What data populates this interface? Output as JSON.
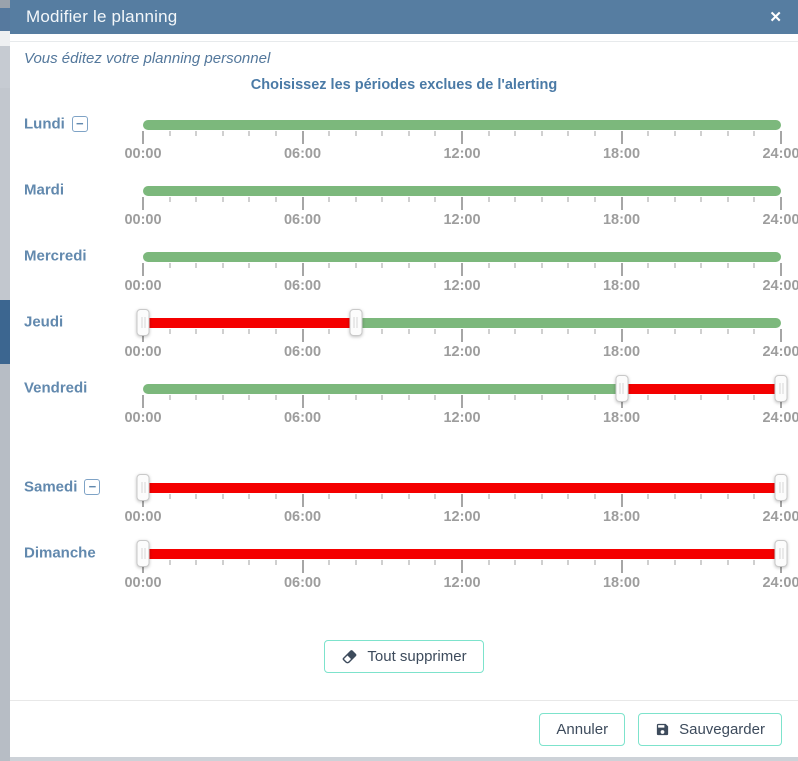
{
  "header": {
    "title": "Modifier le planning",
    "close_label": "✕"
  },
  "subtitle": "Vous éditez votre planning personnel",
  "section_title": "Choisissez les périodes exclues de l'alerting",
  "axis": {
    "tick_labels": [
      "00:00",
      "06:00",
      "12:00",
      "18:00",
      "24:00"
    ],
    "hours_total": 24,
    "minor_tick_every_hours": 1,
    "major_tick_every_hours": 6
  },
  "days": [
    {
      "label": "Lundi",
      "removable": true,
      "extra_gap_before": false,
      "segments": [
        {
          "start": 0,
          "end": 24,
          "color": "green"
        }
      ],
      "handles": []
    },
    {
      "label": "Mardi",
      "removable": false,
      "extra_gap_before": false,
      "segments": [
        {
          "start": 0,
          "end": 24,
          "color": "green"
        }
      ],
      "handles": []
    },
    {
      "label": "Mercredi",
      "removable": false,
      "extra_gap_before": false,
      "segments": [
        {
          "start": 0,
          "end": 24,
          "color": "green"
        }
      ],
      "handles": []
    },
    {
      "label": "Jeudi",
      "removable": false,
      "extra_gap_before": false,
      "segments": [
        {
          "start": 0,
          "end": 8,
          "color": "red"
        },
        {
          "start": 8,
          "end": 24,
          "color": "green"
        }
      ],
      "handles": [
        0,
        8
      ]
    },
    {
      "label": "Vendredi",
      "removable": false,
      "extra_gap_before": false,
      "segments": [
        {
          "start": 0,
          "end": 18,
          "color": "green"
        },
        {
          "start": 18,
          "end": 24,
          "color": "red"
        }
      ],
      "handles": [
        18,
        24
      ]
    },
    {
      "label": "Samedi",
      "removable": true,
      "extra_gap_before": true,
      "segments": [
        {
          "start": 0,
          "end": 24,
          "color": "red"
        }
      ],
      "handles": [
        0,
        24
      ]
    },
    {
      "label": "Dimanche",
      "removable": false,
      "extra_gap_before": false,
      "segments": [
        {
          "start": 0,
          "end": 24,
          "color": "red"
        }
      ],
      "handles": [
        0,
        24
      ]
    }
  ],
  "controls": {
    "remove_glyph": "−"
  },
  "actions": {
    "clear_all": "Tout supprimer",
    "cancel": "Annuler",
    "save": "Sauvegarder"
  },
  "colors": {
    "header_bg": "#567da1",
    "active_green": "#7cb87c",
    "excluded_red": "#f40000",
    "button_border_teal": "#7de3cc",
    "day_label_blue": "#6289ae",
    "accent_text_blue": "#4a7aa6"
  }
}
